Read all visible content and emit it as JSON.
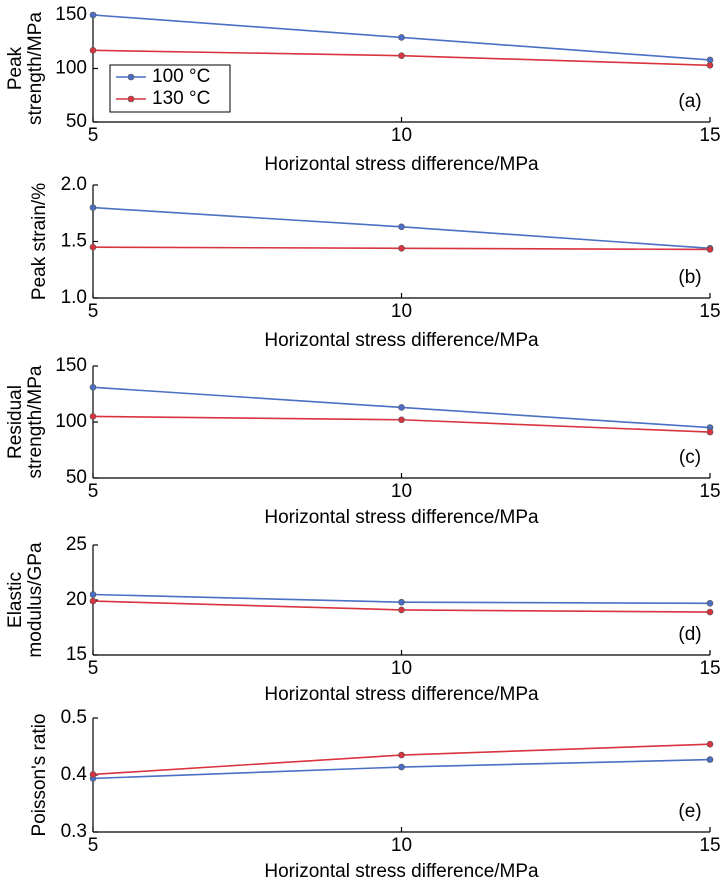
{
  "chart_data": [
    {
      "type": "line",
      "ylabel": [
        "Peak",
        "strength/MPa"
      ],
      "xlabel": "Horizontal stress difference/MPa",
      "annotation": "(a)",
      "x": [
        5,
        10,
        15
      ],
      "xlim": [
        5,
        15
      ],
      "xticks": [
        5,
        10,
        15
      ],
      "ylim": [
        50,
        150
      ],
      "yticks": [
        50,
        100,
        150
      ],
      "legend": "left",
      "series": [
        {
          "name": "100 °C",
          "color": "#4a6fc4",
          "values": [
            150,
            129,
            108
          ]
        },
        {
          "name": "130 °C",
          "color": "#d9333f",
          "values": [
            117,
            112,
            103
          ]
        }
      ]
    },
    {
      "type": "line",
      "ylabel": [
        "Peak strain/%"
      ],
      "xlabel": "Horizontal stress difference/MPa",
      "annotation": "(b)",
      "x": [
        5,
        10,
        15
      ],
      "xlim": [
        5,
        15
      ],
      "xticks": [
        5,
        10,
        15
      ],
      "ylim": [
        1,
        2
      ],
      "yticks": [
        {
          "value": 1,
          "label": "1.0"
        },
        1.5,
        {
          "value": 2,
          "label": "2.0"
        }
      ],
      "series": [
        {
          "color": "#4a6fc4",
          "values": [
            1.8,
            1.63,
            1.44
          ]
        },
        {
          "color": "#d9333f",
          "values": [
            1.45,
            1.44,
            1.43
          ]
        }
      ]
    },
    {
      "type": "line",
      "ylabel": [
        "Residual",
        "strength/MPa"
      ],
      "xlabel": "Horizontal stress difference/MPa",
      "annotation": "(c)",
      "x": [
        5,
        10,
        15
      ],
      "xlim": [
        5,
        15
      ],
      "xticks": [
        5,
        10,
        15
      ],
      "ylim": [
        50,
        150
      ],
      "yticks": [
        50,
        100,
        150
      ],
      "series": [
        {
          "color": "#4a6fc4",
          "values": [
            131,
            113,
            95
          ]
        },
        {
          "color": "#d9333f",
          "values": [
            105,
            102,
            91
          ]
        }
      ]
    },
    {
      "type": "line",
      "ylabel": [
        "Elastic",
        "modulus/GPa"
      ],
      "xlabel": "Horizontal stress difference/MPa",
      "annotation": "(d)",
      "x": [
        5,
        10,
        15
      ],
      "xlim": [
        5,
        15
      ],
      "xticks": [
        5,
        10,
        15
      ],
      "ylim": [
        15,
        25
      ],
      "yticks": [
        15,
        20,
        25
      ],
      "series": [
        {
          "color": "#4a6fc4",
          "values": [
            20.5,
            19.8,
            19.7
          ]
        },
        {
          "color": "#d9333f",
          "values": [
            19.9,
            19.1,
            18.9
          ]
        }
      ]
    },
    {
      "type": "line",
      "ylabel": [
        "Poisson's ratio"
      ],
      "xlabel": "Horizontal stress difference/MPa",
      "annotation": "(e)",
      "x": [
        5,
        10,
        15
      ],
      "xlim": [
        5,
        15
      ],
      "xticks": [
        5,
        10,
        15
      ],
      "ylim": [
        0.3,
        0.5
      ],
      "yticks": [
        0.3,
        0.4,
        0.5
      ],
      "series": [
        {
          "color": "#4a6fc4",
          "values": [
            0.394,
            0.414,
            0.427
          ]
        },
        {
          "color": "#d9333f",
          "values": [
            0.401,
            0.435,
            0.454
          ]
        }
      ]
    }
  ]
}
